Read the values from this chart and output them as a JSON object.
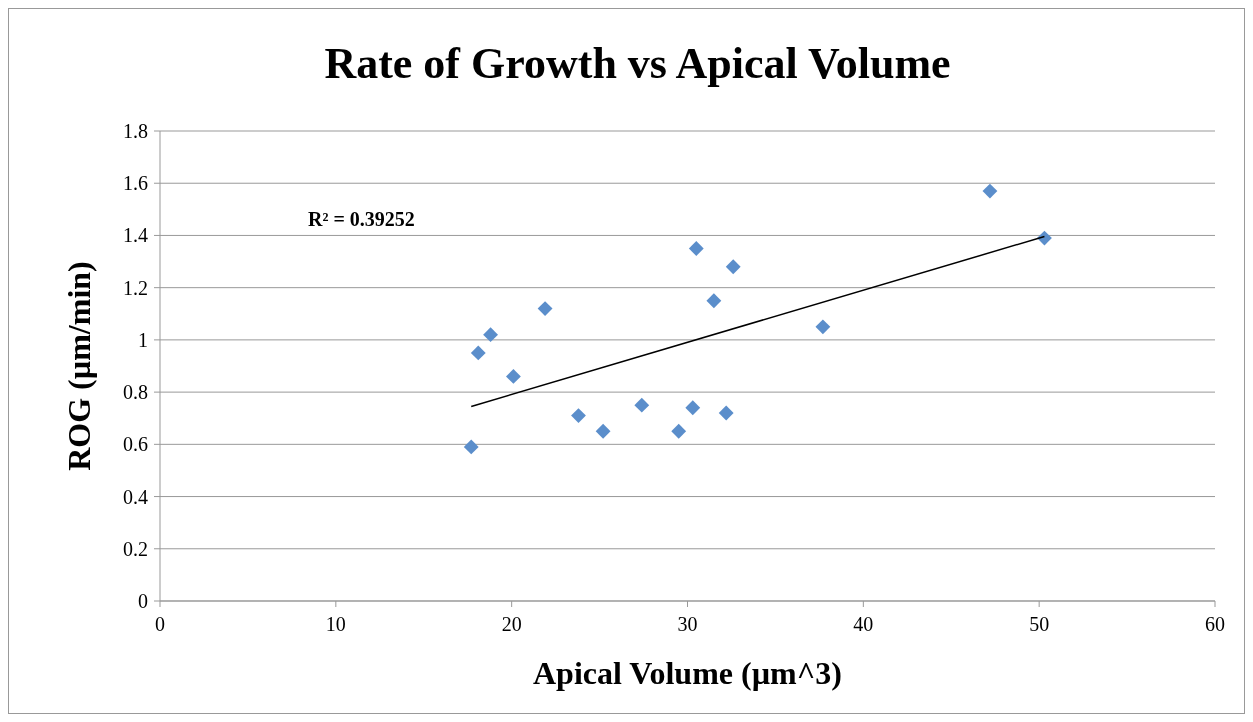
{
  "chart_data": {
    "type": "scatter",
    "title": "Rate of Growth vs Apical Volume",
    "xlabel": "Apical Volume (µm^3)",
    "ylabel": "ROG (µm/min)",
    "annotations": [
      "R² = 0.39252"
    ],
    "series": [
      {
        "type": "scatter",
        "color": "#5b8ecb",
        "marker": "diamond",
        "x": [
          17.7,
          18.1,
          18.8,
          20.1,
          21.9,
          23.8,
          25.2,
          27.4,
          29.5,
          30.3,
          30.5,
          32.2,
          31.5,
          32.6,
          37.7,
          47.2,
          50.3
        ],
        "values": [
          0.59,
          0.95,
          1.02,
          0.86,
          1.12,
          0.71,
          0.65,
          0.75,
          0.65,
          0.74,
          1.35,
          0.72,
          1.15,
          1.28,
          1.05,
          1.57,
          1.39
        ]
      },
      {
        "type": "line",
        "color": "#000000",
        "x": [
          17.7,
          50.3
        ],
        "values": [
          0.745,
          1.396
        ]
      }
    ],
    "xlim": [
      0,
      60
    ],
    "xticks": [
      0,
      10,
      20,
      30,
      40,
      50,
      60
    ],
    "ylim": [
      0,
      1.8
    ],
    "yticks": [
      0,
      0.2,
      0.4,
      0.6,
      0.8,
      1,
      1.2,
      1.4,
      1.6,
      1.8
    ],
    "grid": "y"
  }
}
